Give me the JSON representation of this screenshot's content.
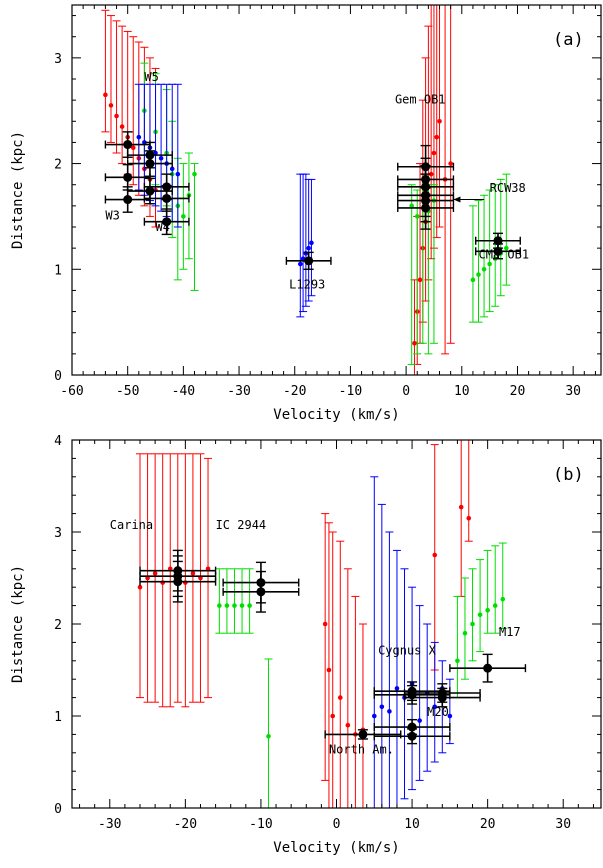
{
  "colors": {
    "red": "#ff0000",
    "green": "#00dd00",
    "blue": "#0000ff",
    "black": "#000000"
  },
  "chart_data": [
    {
      "panel_label": "(a)",
      "type": "scatter",
      "xlabel": "Velocity (km/s)",
      "ylabel": "Distance (kpc)",
      "xlim": [
        -60,
        35
      ],
      "ylim": [
        0,
        3.5
      ],
      "xticks": [
        -60,
        -50,
        -40,
        -30,
        -20,
        -10,
        0,
        10,
        20,
        30
      ],
      "yticks": [
        0,
        1,
        2,
        3
      ],
      "grid": false,
      "series": [
        {
          "color": "red",
          "points": [
            {
              "x": -54,
              "y": 2.65,
              "lo": 2.3,
              "hi": 3.45
            },
            {
              "x": -53,
              "y": 2.55,
              "lo": 2.2,
              "hi": 3.4
            },
            {
              "x": -52,
              "y": 2.45,
              "lo": 2.1,
              "hi": 3.35
            },
            {
              "x": -51,
              "y": 2.35,
              "lo": 2.0,
              "hi": 3.3
            },
            {
              "x": -50,
              "y": 2.25,
              "lo": 1.9,
              "hi": 3.25
            },
            {
              "x": -49,
              "y": 2.15,
              "lo": 1.8,
              "hi": 3.2
            },
            {
              "x": -48,
              "y": 2.05,
              "lo": 1.7,
              "hi": 3.15
            },
            {
              "x": -47,
              "y": 1.95,
              "lo": 1.6,
              "hi": 3.1
            },
            {
              "x": -46,
              "y": 1.85,
              "lo": 1.5,
              "hi": 3.0
            },
            {
              "x": -45,
              "y": 1.75,
              "lo": 1.4,
              "hi": 2.9
            },
            {
              "x": 1.5,
              "y": 0.3,
              "lo": 0.0,
              "hi": 0.9
            },
            {
              "x": 2.0,
              "y": 0.6,
              "lo": 0.1,
              "hi": 1.5
            },
            {
              "x": 2.5,
              "y": 0.9,
              "lo": 0.3,
              "hi": 2.0
            },
            {
              "x": 3.0,
              "y": 1.2,
              "lo": 0.5,
              "hi": 2.6
            },
            {
              "x": 3.5,
              "y": 1.45,
              "lo": 0.7,
              "hi": 3.0
            },
            {
              "x": 4.0,
              "y": 1.7,
              "lo": 0.9,
              "hi": 3.3
            },
            {
              "x": 4.5,
              "y": 1.9,
              "lo": 1.1,
              "hi": 3.5
            },
            {
              "x": 5.0,
              "y": 2.1,
              "lo": 1.2,
              "hi": 3.5
            },
            {
              "x": 5.5,
              "y": 2.25,
              "lo": 1.3,
              "hi": 3.5
            },
            {
              "x": 6.0,
              "y": 2.4,
              "lo": 1.4,
              "hi": 3.5
            },
            {
              "x": 7.0,
              "y": 1.85,
              "lo": 0.2,
              "hi": 3.5
            },
            {
              "x": 8.0,
              "y": 2.0,
              "lo": 0.3,
              "hi": 3.5
            }
          ]
        },
        {
          "color": "green",
          "points": [
            {
              "x": -47,
              "y": 2.5,
              "lo": 2.0,
              "hi": 2.95
            },
            {
              "x": -45,
              "y": 2.3,
              "lo": 1.8,
              "hi": 2.85
            },
            {
              "x": -43,
              "y": 2.1,
              "lo": 1.6,
              "hi": 2.7
            },
            {
              "x": -42,
              "y": 1.9,
              "lo": 1.3,
              "hi": 2.4
            },
            {
              "x": -41,
              "y": 1.6,
              "lo": 0.9,
              "hi": 2.05
            },
            {
              "x": -40,
              "y": 1.5,
              "lo": 1.0,
              "hi": 2.0
            },
            {
              "x": -39,
              "y": 1.7,
              "lo": 1.1,
              "hi": 2.1
            },
            {
              "x": -38,
              "y": 1.9,
              "lo": 0.8,
              "hi": 2.0
            },
            {
              "x": 1.0,
              "y": 1.6,
              "lo": 0.1,
              "hi": 1.8
            },
            {
              "x": 2.0,
              "y": 1.5,
              "lo": 0.2,
              "hi": 1.75
            },
            {
              "x": 3.0,
              "y": 1.7,
              "lo": 0.3,
              "hi": 1.85
            },
            {
              "x": 4.0,
              "y": 1.55,
              "lo": 0.2,
              "hi": 1.8
            },
            {
              "x": 5.0,
              "y": 1.65,
              "lo": 0.3,
              "hi": 1.8
            },
            {
              "x": 12,
              "y": 0.9,
              "lo": 0.5,
              "hi": 1.6
            },
            {
              "x": 13,
              "y": 0.95,
              "lo": 0.5,
              "hi": 1.65
            },
            {
              "x": 14,
              "y": 1.0,
              "lo": 0.55,
              "hi": 1.7
            },
            {
              "x": 15,
              "y": 1.05,
              "lo": 0.6,
              "hi": 1.75
            },
            {
              "x": 16,
              "y": 1.1,
              "lo": 0.65,
              "hi": 1.8
            },
            {
              "x": 17,
              "y": 1.15,
              "lo": 0.75,
              "hi": 1.85
            },
            {
              "x": 18,
              "y": 1.2,
              "lo": 0.85,
              "hi": 1.9
            }
          ]
        },
        {
          "color": "blue",
          "points": [
            {
              "x": -48,
              "y": 2.25,
              "lo": 1.75,
              "hi": 2.75
            },
            {
              "x": -47,
              "y": 2.2,
              "lo": 1.7,
              "hi": 2.75
            },
            {
              "x": -46,
              "y": 2.15,
              "lo": 1.65,
              "hi": 2.75
            },
            {
              "x": -45,
              "y": 2.1,
              "lo": 1.6,
              "hi": 2.75
            },
            {
              "x": -44,
              "y": 2.05,
              "lo": 1.55,
              "hi": 2.75
            },
            {
              "x": -43,
              "y": 2.0,
              "lo": 1.5,
              "hi": 2.75
            },
            {
              "x": -42,
              "y": 1.95,
              "lo": 1.45,
              "hi": 2.75
            },
            {
              "x": -41,
              "y": 1.9,
              "lo": 1.4,
              "hi": 2.75
            },
            {
              "x": -19,
              "y": 1.05,
              "lo": 0.55,
              "hi": 1.9
            },
            {
              "x": -18.5,
              "y": 1.1,
              "lo": 0.6,
              "hi": 1.9
            },
            {
              "x": -18,
              "y": 1.15,
              "lo": 0.65,
              "hi": 1.9
            },
            {
              "x": -17.5,
              "y": 1.2,
              "lo": 0.7,
              "hi": 1.85
            },
            {
              "x": -17,
              "y": 1.25,
              "lo": 0.75,
              "hi": 1.85
            }
          ]
        }
      ],
      "clusters": [
        {
          "x": -50,
          "y": 2.18,
          "xerr": 4,
          "yerr": 0.12
        },
        {
          "x": -50,
          "y": 1.87,
          "xerr": 4,
          "yerr": 0.12
        },
        {
          "x": -50,
          "y": 1.66,
          "xerr": 4,
          "yerr": 0.12
        },
        {
          "x": -46,
          "y": 2.08,
          "xerr": 4,
          "yerr": 0.12
        },
        {
          "x": -46,
          "y": 2.0,
          "xerr": 4,
          "yerr": 0.12
        },
        {
          "x": -46,
          "y": 1.74,
          "xerr": 4,
          "yerr": 0.12
        },
        {
          "x": -43,
          "y": 1.78,
          "xerr": 4,
          "yerr": 0.12
        },
        {
          "x": -43,
          "y": 1.67,
          "xerr": 4,
          "yerr": 0.12
        },
        {
          "x": -43,
          "y": 1.45,
          "xerr": 4,
          "yerr": 0.12
        },
        {
          "x": -17.5,
          "y": 1.08,
          "xerr": 4,
          "yerr": 0.08
        },
        {
          "x": 3.5,
          "y": 1.97,
          "xerr": 5,
          "yerr": 0.2
        },
        {
          "x": 3.5,
          "y": 1.85,
          "xerr": 5,
          "yerr": 0.2
        },
        {
          "x": 3.5,
          "y": 1.78,
          "xerr": 5,
          "yerr": 0.2
        },
        {
          "x": 3.5,
          "y": 1.7,
          "xerr": 5,
          "yerr": 0.2
        },
        {
          "x": 3.5,
          "y": 1.65,
          "xerr": 5,
          "yerr": 0.2
        },
        {
          "x": 3.5,
          "y": 1.58,
          "xerr": 5,
          "yerr": 0.2
        },
        {
          "x": 16.5,
          "y": 1.27,
          "xerr": 4,
          "yerr": 0.07
        },
        {
          "x": 16.5,
          "y": 1.17,
          "xerr": 4,
          "yerr": 0.07
        }
      ],
      "annotations": [
        {
          "text": "W5",
          "x": -47,
          "y": 2.78
        },
        {
          "text": "W3",
          "x": -54,
          "y": 1.47
        },
        {
          "text": "W4",
          "x": -45,
          "y": 1.36
        },
        {
          "text": "L1293",
          "x": -21,
          "y": 0.82
        },
        {
          "text": "Gem OB1",
          "x": -2,
          "y": 2.57
        },
        {
          "text": "RCW38",
          "x": 15,
          "y": 1.73
        },
        {
          "text": "CMa OB1",
          "x": 13,
          "y": 1.1
        }
      ],
      "arrows": [
        {
          "from": [
            14,
            1.66
          ],
          "to": [
            8.5,
            1.66
          ]
        }
      ]
    },
    {
      "panel_label": "(b)",
      "type": "scatter",
      "xlabel": "Velocity (km/s)",
      "ylabel": "Distance (kpc)",
      "xlim": [
        -35,
        35
      ],
      "ylim": [
        0,
        4
      ],
      "xticks": [
        -30,
        -20,
        -10,
        0,
        10,
        20,
        30
      ],
      "yticks": [
        0,
        1,
        2,
        3,
        4
      ],
      "grid": false,
      "series": [
        {
          "color": "red",
          "points": [
            {
              "x": -26,
              "y": 2.4,
              "lo": 1.2,
              "hi": 3.85
            },
            {
              "x": -25,
              "y": 2.5,
              "lo": 1.15,
              "hi": 3.85
            },
            {
              "x": -24,
              "y": 2.55,
              "lo": 1.15,
              "hi": 3.85
            },
            {
              "x": -23,
              "y": 2.45,
              "lo": 1.1,
              "hi": 3.85
            },
            {
              "x": -22,
              "y": 2.6,
              "lo": 1.1,
              "hi": 3.85
            },
            {
              "x": -21,
              "y": 2.5,
              "lo": 1.15,
              "hi": 3.85
            },
            {
              "x": -20,
              "y": 2.45,
              "lo": 1.1,
              "hi": 3.85
            },
            {
              "x": -19,
              "y": 2.55,
              "lo": 1.15,
              "hi": 3.85
            },
            {
              "x": -18,
              "y": 2.5,
              "lo": 1.15,
              "hi": 3.85
            },
            {
              "x": -17,
              "y": 2.6,
              "lo": 1.2,
              "hi": 3.8
            },
            {
              "x": -1.5,
              "y": 2.0,
              "lo": 0.3,
              "hi": 3.2
            },
            {
              "x": -1.0,
              "y": 1.5,
              "lo": 0.0,
              "hi": 3.1
            },
            {
              "x": -0.5,
              "y": 1.0,
              "lo": 0.0,
              "hi": 3.0
            },
            {
              "x": 0.5,
              "y": 1.2,
              "lo": 0.0,
              "hi": 2.9
            },
            {
              "x": 1.5,
              "y": 0.9,
              "lo": 0.0,
              "hi": 2.6
            },
            {
              "x": 2.5,
              "y": 0.8,
              "lo": 0.0,
              "hi": 2.3
            },
            {
              "x": 3.5,
              "y": 0.85,
              "lo": 0.0,
              "hi": 2.0
            },
            {
              "x": 13,
              "y": 2.75,
              "lo": 1.5,
              "hi": 3.95
            },
            {
              "x": 16.5,
              "y": 3.27,
              "lo": 2.3,
              "hi": 4.0
            },
            {
              "x": 17.5,
              "y": 3.15,
              "lo": 2.9,
              "hi": 4.0
            }
          ]
        },
        {
          "color": "green",
          "points": [
            {
              "x": -15.5,
              "y": 2.2,
              "lo": 1.9,
              "hi": 2.6
            },
            {
              "x": -14.5,
              "y": 2.2,
              "lo": 1.9,
              "hi": 2.6
            },
            {
              "x": -13.5,
              "y": 2.2,
              "lo": 1.9,
              "hi": 2.6
            },
            {
              "x": -12.5,
              "y": 2.2,
              "lo": 1.9,
              "hi": 2.6
            },
            {
              "x": -11.5,
              "y": 2.2,
              "lo": 1.9,
              "hi": 2.6
            },
            {
              "x": -9,
              "y": 0.78,
              "lo": 0.0,
              "hi": 1.62
            },
            {
              "x": 16,
              "y": 1.6,
              "lo": 1.2,
              "hi": 2.3
            },
            {
              "x": 17,
              "y": 1.9,
              "lo": 1.4,
              "hi": 2.5
            },
            {
              "x": 18,
              "y": 2.0,
              "lo": 1.6,
              "hi": 2.6
            },
            {
              "x": 19,
              "y": 2.1,
              "lo": 1.7,
              "hi": 2.7
            },
            {
              "x": 20,
              "y": 2.15,
              "lo": 1.9,
              "hi": 2.8
            },
            {
              "x": 21,
              "y": 2.2,
              "lo": 1.9,
              "hi": 2.85
            },
            {
              "x": 22,
              "y": 2.27,
              "lo": 1.95,
              "hi": 2.88
            }
          ]
        },
        {
          "color": "blue",
          "points": [
            {
              "x": 5,
              "y": 1.0,
              "lo": 0.0,
              "hi": 3.6
            },
            {
              "x": 6,
              "y": 1.1,
              "lo": 0.0,
              "hi": 3.3
            },
            {
              "x": 7,
              "y": 1.05,
              "lo": 0.0,
              "hi": 3.0
            },
            {
              "x": 8,
              "y": 1.3,
              "lo": 0.0,
              "hi": 2.8
            },
            {
              "x": 9,
              "y": 1.2,
              "lo": 0.1,
              "hi": 2.6
            },
            {
              "x": 10,
              "y": 1.35,
              "lo": 0.2,
              "hi": 2.4
            },
            {
              "x": 11,
              "y": 0.95,
              "lo": 0.3,
              "hi": 2.2
            },
            {
              "x": 12,
              "y": 1.25,
              "lo": 0.4,
              "hi": 2.0
            },
            {
              "x": 13,
              "y": 1.1,
              "lo": 0.5,
              "hi": 1.8
            },
            {
              "x": 14,
              "y": 1.3,
              "lo": 0.6,
              "hi": 1.6
            },
            {
              "x": 15,
              "y": 1.0,
              "lo": 0.7,
              "hi": 1.4
            }
          ]
        }
      ],
      "clusters": [
        {
          "x": -21,
          "y": 2.58,
          "xerr": 5,
          "yerr": 0.22
        },
        {
          "x": -21,
          "y": 2.52,
          "xerr": 5,
          "yerr": 0.22
        },
        {
          "x": -21,
          "y": 2.46,
          "xerr": 5,
          "yerr": 0.22
        },
        {
          "x": -10,
          "y": 2.45,
          "xerr": 5,
          "yerr": 0.22
        },
        {
          "x": -10,
          "y": 2.35,
          "xerr": 5,
          "yerr": 0.22
        },
        {
          "x": 10,
          "y": 1.27,
          "xerr": 5,
          "yerr": 0.1
        },
        {
          "x": 10,
          "y": 1.23,
          "xerr": 5,
          "yerr": 0.1
        },
        {
          "x": 14,
          "y": 1.25,
          "xerr": 5,
          "yerr": 0.1
        },
        {
          "x": 14,
          "y": 1.2,
          "xerr": 5,
          "yerr": 0.1
        },
        {
          "x": 10,
          "y": 0.88,
          "xerr": 5,
          "yerr": 0.08
        },
        {
          "x": 10,
          "y": 0.78,
          "xerr": 5,
          "yerr": 0.08
        },
        {
          "x": 3.5,
          "y": 0.8,
          "xerr": 5,
          "yerr": 0.05
        },
        {
          "x": 20,
          "y": 1.52,
          "xerr": 5,
          "yerr": 0.15
        }
      ],
      "annotations": [
        {
          "text": "Carina",
          "x": -30,
          "y": 3.03
        },
        {
          "text": "IC 2944",
          "x": -16,
          "y": 3.03
        },
        {
          "text": "Cygnus X",
          "x": 5.5,
          "y": 1.67
        },
        {
          "text": "M17",
          "x": 21.5,
          "y": 1.87
        },
        {
          "text": "M20",
          "x": 12,
          "y": 1.0
        },
        {
          "text": "North Am.",
          "x": -1,
          "y": 0.59
        }
      ],
      "arrows": []
    }
  ]
}
